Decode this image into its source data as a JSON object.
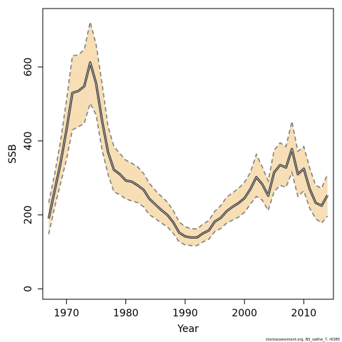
{
  "chart_data": {
    "type": "line",
    "title": "",
    "xlabel": "Year",
    "ylabel": "SSB",
    "xlim": [
      1966,
      2015
    ],
    "ylim": [
      -28,
      758
    ],
    "xticks": [
      1970,
      1980,
      1990,
      2000,
      2010
    ],
    "yticks": [
      0,
      200,
      400,
      600
    ],
    "grid": false,
    "legend": "none",
    "colors": {
      "band": "#f7deb4",
      "bound_line": "#808080",
      "estimate_line": "#333333",
      "frame": "#000000"
    },
    "x": [
      1967,
      1968,
      1969,
      1970,
      1971,
      1972,
      1973,
      1974,
      1975,
      1976,
      1977,
      1978,
      1979,
      1980,
      1981,
      1982,
      1983,
      1984,
      1985,
      1986,
      1987,
      1988,
      1989,
      1990,
      1991,
      1992,
      1993,
      1994,
      1995,
      1996,
      1997,
      1998,
      1999,
      2000,
      2001,
      2002,
      2003,
      2004,
      2005,
      2006,
      2007,
      2008,
      2009,
      2010,
      2011,
      2012,
      2013,
      2014
    ],
    "series": [
      {
        "role": "estimate",
        "values": [
          190,
          265,
          340,
          430,
          530,
          535,
          548,
          612,
          555,
          455,
          370,
          322,
          310,
          293,
          290,
          280,
          268,
          243,
          228,
          213,
          200,
          180,
          152,
          142,
          139,
          139,
          150,
          158,
          182,
          192,
          210,
          222,
          232,
          245,
          270,
          302,
          283,
          252,
          315,
          335,
          328,
          378,
          310,
          325,
          270,
          233,
          225,
          253
        ]
      },
      {
        "role": "upper",
        "values": [
          233,
          310,
          400,
          510,
          630,
          633,
          647,
          722,
          660,
          555,
          440,
          385,
          366,
          348,
          340,
          330,
          312,
          285,
          266,
          250,
          235,
          212,
          181,
          168,
          163,
          162,
          175,
          185,
          210,
          225,
          248,
          260,
          272,
          288,
          315,
          364,
          330,
          292,
          375,
          395,
          385,
          453,
          372,
          385,
          327,
          280,
          272,
          310
        ]
      },
      {
        "role": "lower",
        "values": [
          148,
          220,
          285,
          350,
          430,
          438,
          448,
          502,
          470,
          375,
          310,
          262,
          255,
          243,
          238,
          233,
          222,
          200,
          190,
          178,
          168,
          150,
          127,
          119,
          117,
          117,
          127,
          134,
          155,
          163,
          178,
          186,
          194,
          207,
          229,
          250,
          240,
          212,
          263,
          280,
          275,
          315,
          250,
          265,
          218,
          190,
          178,
          197
        ]
      }
    ],
    "credit": "stockassessment.org, NS_saithe_7, r6385"
  }
}
